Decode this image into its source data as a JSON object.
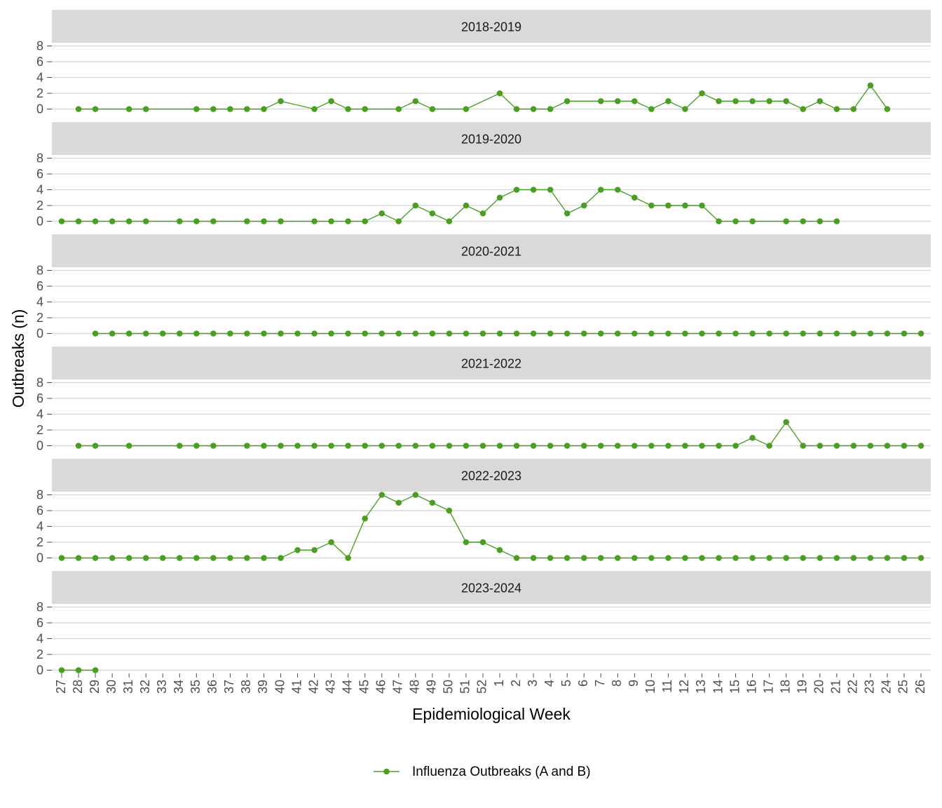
{
  "chart_data": {
    "type": "line",
    "x_label": "Epidemiological Week",
    "y_label": "Outbreaks (n)",
    "series_name": "Influenza Outbreaks (A and B)",
    "color": "#4a9e24",
    "grid": true,
    "legend_position": "bottom",
    "categories": [
      "27",
      "28",
      "29",
      "30",
      "31",
      "32",
      "33",
      "34",
      "35",
      "36",
      "37",
      "38",
      "39",
      "40",
      "41",
      "42",
      "43",
      "44",
      "45",
      "46",
      "47",
      "48",
      "49",
      "50",
      "51",
      "52",
      "1",
      "2",
      "3",
      "4",
      "5",
      "6",
      "7",
      "8",
      "9",
      "10",
      "11",
      "12",
      "13",
      "14",
      "15",
      "16",
      "17",
      "18",
      "19",
      "20",
      "21",
      "22",
      "23",
      "24",
      "25",
      "26"
    ],
    "ylim": [
      -0.4,
      8.4
    ],
    "yticks": [
      0,
      2,
      4,
      6,
      8
    ],
    "panels": [
      {
        "title": "2018-2019",
        "values": [
          null,
          0,
          0,
          null,
          0,
          0,
          null,
          null,
          0,
          0,
          0,
          0,
          0,
          1,
          null,
          0,
          1,
          0,
          0,
          null,
          0,
          1,
          0,
          null,
          0,
          null,
          2,
          0,
          0,
          0,
          1,
          null,
          1,
          1,
          1,
          0,
          1,
          0,
          2,
          1,
          1,
          1,
          1,
          1,
          0,
          1,
          0,
          0,
          3,
          0,
          null,
          null
        ]
      },
      {
        "title": "2019-2020",
        "values": [
          0,
          0,
          0,
          0,
          0,
          0,
          null,
          0,
          0,
          0,
          null,
          0,
          0,
          0,
          null,
          0,
          0,
          0,
          0,
          1,
          0,
          2,
          1,
          0,
          2,
          1,
          3,
          4,
          4,
          4,
          1,
          2,
          4,
          4,
          3,
          2,
          2,
          2,
          2,
          0,
          0,
          0,
          null,
          0,
          0,
          0,
          0,
          null,
          null,
          null,
          null,
          null
        ]
      },
      {
        "title": "2020-2021",
        "values": [
          null,
          null,
          0,
          0,
          0,
          0,
          0,
          0,
          0,
          0,
          0,
          0,
          0,
          0,
          0,
          0,
          0,
          0,
          0,
          0,
          0,
          0,
          0,
          0,
          0,
          0,
          0,
          0,
          0,
          0,
          0,
          0,
          0,
          0,
          0,
          0,
          0,
          0,
          0,
          0,
          0,
          0,
          0,
          0,
          0,
          0,
          0,
          0,
          0,
          0,
          0,
          0
        ]
      },
      {
        "title": "2021-2022",
        "values": [
          null,
          0,
          0,
          null,
          0,
          null,
          null,
          0,
          0,
          0,
          null,
          0,
          0,
          0,
          0,
          0,
          0,
          0,
          0,
          0,
          0,
          0,
          0,
          0,
          0,
          0,
          0,
          0,
          0,
          0,
          0,
          0,
          0,
          0,
          0,
          0,
          0,
          0,
          0,
          0,
          0,
          1,
          0,
          3,
          0,
          0,
          0,
          0,
          0,
          0,
          0,
          0
        ]
      },
      {
        "title": "2022-2023",
        "values": [
          0,
          0,
          0,
          0,
          0,
          0,
          0,
          0,
          0,
          0,
          0,
          0,
          0,
          0,
          1,
          1,
          2,
          0,
          5,
          8,
          7,
          8,
          7,
          6,
          2,
          2,
          1,
          0,
          0,
          0,
          0,
          0,
          0,
          0,
          0,
          0,
          0,
          0,
          0,
          0,
          0,
          0,
          0,
          0,
          0,
          0,
          0,
          0,
          0,
          0,
          0,
          0
        ]
      },
      {
        "title": "2023-2024",
        "values": [
          0,
          0,
          0,
          null,
          null,
          null,
          null,
          null,
          null,
          null,
          null,
          null,
          null,
          null,
          null,
          null,
          null,
          null,
          null,
          null,
          null,
          null,
          null,
          null,
          null,
          null,
          null,
          null,
          null,
          null,
          null,
          null,
          null,
          null,
          null,
          null,
          null,
          null,
          null,
          null,
          null,
          null,
          null,
          null,
          null,
          null,
          null,
          null,
          null,
          null,
          null,
          null
        ]
      }
    ]
  }
}
